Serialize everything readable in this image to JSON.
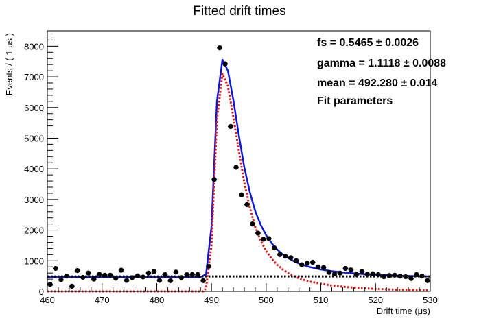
{
  "chart_data": {
    "type": "scatter",
    "title": "Fitted drift times",
    "xlabel": "Drift time (μs)",
    "ylabel": "Events / ( 1 μs )",
    "xlim": [
      460,
      530
    ],
    "ylim": [
      0,
      8500
    ],
    "x_ticks": [
      460,
      470,
      480,
      490,
      500,
      510,
      520,
      530
    ],
    "y_ticks": [
      0,
      1000,
      2000,
      3000,
      4000,
      5000,
      6000,
      7000,
      8000
    ],
    "grid": false,
    "data_points": {
      "x": [
        460.5,
        461.5,
        462.5,
        463.5,
        464.5,
        465.5,
        466.5,
        467.5,
        468.5,
        469.5,
        470.5,
        471.5,
        472.5,
        473.5,
        474.5,
        475.5,
        476.5,
        477.5,
        478.5,
        479.5,
        480.5,
        481.5,
        482.5,
        483.5,
        484.5,
        485.5,
        486.5,
        487.5,
        488.5,
        489.5,
        490.5,
        491.5,
        492.5,
        493.5,
        494.5,
        495.5,
        496.5,
        497.5,
        498.5,
        499.5,
        500.5,
        501.5,
        502.5,
        503.5,
        504.5,
        505.5,
        506.5,
        507.5,
        508.5,
        509.5,
        510.5,
        511.5,
        512.5,
        513.5,
        514.5,
        515.5,
        516.5,
        517.5,
        518.5,
        519.5,
        520.5,
        521.5,
        522.5,
        523.5,
        524.5,
        525.5,
        526.5,
        527.5,
        528.5,
        529.5
      ],
      "y": [
        230,
        750,
        380,
        500,
        170,
        680,
        460,
        600,
        400,
        560,
        530,
        530,
        430,
        690,
        360,
        450,
        510,
        470,
        600,
        650,
        360,
        550,
        350,
        630,
        450,
        550,
        550,
        550,
        350,
        820,
        3650,
        7950,
        7420,
        5380,
        4050,
        3150,
        2830,
        2200,
        1900,
        1700,
        1720,
        1420,
        1200,
        1150,
        1100,
        1000,
        870,
        920,
        950,
        800,
        780,
        620,
        570,
        600,
        750,
        700,
        550,
        650,
        560,
        580,
        550,
        480,
        520,
        530,
        500,
        480,
        420,
        550,
        500,
        350
      ]
    },
    "series": [
      {
        "type": "line",
        "style": "solid",
        "color": "#0b18e0",
        "x": [
          460,
          488,
          489,
          490,
          491,
          492,
          493,
          494,
          495,
          496,
          497,
          498,
          499,
          500,
          501,
          502,
          503,
          504,
          505,
          506,
          507,
          508,
          510,
          512,
          514,
          516,
          518,
          520,
          522,
          524,
          526,
          528,
          530
        ],
        "y": [
          470,
          470,
          560,
          2100,
          6200,
          7560,
          7200,
          6250,
          5100,
          4050,
          3250,
          2620,
          2170,
          1830,
          1570,
          1370,
          1210,
          1090,
          990,
          910,
          845,
          795,
          715,
          660,
          620,
          590,
          565,
          545,
          530,
          515,
          505,
          495,
          488
        ]
      },
      {
        "type": "line",
        "style": "dotted",
        "color": "#e8120e",
        "x": [
          460,
          488.5,
          489,
          490,
          491,
          492,
          493,
          494,
          495,
          496,
          497,
          498,
          499,
          500,
          501,
          502,
          503,
          504,
          505,
          506,
          507,
          508,
          510,
          512,
          514,
          516,
          518,
          520,
          522,
          524,
          526,
          528,
          530
        ],
        "y": [
          0,
          0,
          100,
          1500,
          5600,
          7100,
          6700,
          5700,
          4600,
          3550,
          2750,
          2100,
          1650,
          1320,
          1070,
          870,
          720,
          600,
          505,
          430,
          370,
          320,
          250,
          195,
          155,
          125,
          100,
          82,
          68,
          57,
          48,
          40,
          34
        ]
      },
      {
        "type": "line",
        "style": "dotted",
        "color": "#000000",
        "x": [
          460,
          530
        ],
        "y": [
          490,
          490
        ]
      }
    ],
    "annotations": [
      {
        "label": "fs =  0.5465 ± 0.0026"
      },
      {
        "label": "gamma =  1.1118 ± 0.0088"
      },
      {
        "label": "mean =  492.280 ± 0.014"
      },
      {
        "label": "Fit parameters"
      }
    ]
  }
}
